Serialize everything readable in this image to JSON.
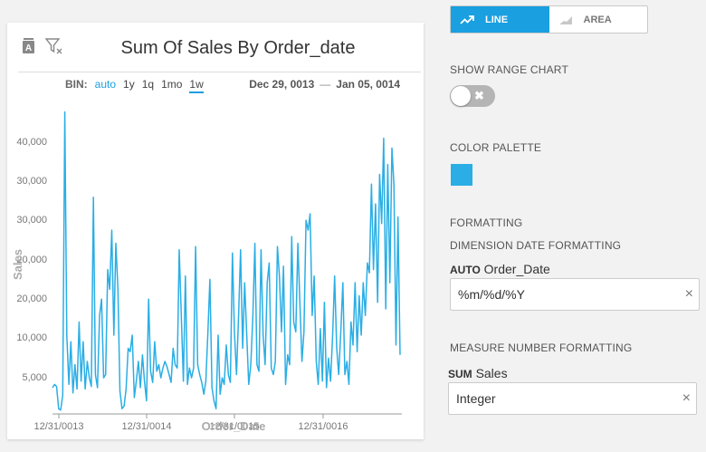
{
  "card": {
    "title": "Sum Of Sales By Order_date",
    "bin_label": "BIN:",
    "bin_options": [
      "auto",
      "1y",
      "1q",
      "1mo",
      "1w"
    ],
    "range_start": "Dec 29, 0013",
    "range_sep": "—",
    "range_end": "Jan 05, 0014",
    "icons": [
      "clear-text-icon",
      "clear-filter-icon"
    ]
  },
  "chart_data": {
    "type": "line",
    "xlabel": "Order_Date",
    "ylabel": "Sales",
    "x_ticks": [
      "12/31/0013",
      "12/31/0014",
      "12/31/0015",
      "12/31/0016"
    ],
    "y_ticks": [
      "5,000",
      "10,000",
      "20,000",
      "20,000",
      "30,000",
      "30,000",
      "40,000"
    ],
    "ylim": [
      0,
      46500
    ],
    "series_color": "#2aaee5",
    "series": [
      {
        "values": [
          4000,
          4500,
          4200,
          800,
          600,
          2800,
          46000,
          12000,
          4500,
          11000,
          3200,
          7500,
          3800,
          14000,
          5000,
          11000,
          3800,
          8000,
          5500,
          4200,
          33000,
          6000,
          4000,
          15000,
          17500,
          5500,
          6000,
          22000,
          19000,
          28000,
          12000,
          26000,
          19000,
          3500,
          800,
          1200,
          3800,
          10000,
          9500,
          12000,
          2500,
          5000,
          8000,
          4000,
          9000,
          5000,
          2000,
          17500,
          6500,
          4800,
          11000,
          6500,
          7500,
          5500,
          7000,
          8000,
          7200,
          6000,
          4800,
          10000,
          7500,
          7000,
          25000,
          15000,
          5000,
          21000,
          4500,
          7000,
          5500,
          7000,
          25500,
          7500,
          6000,
          4800,
          3000,
          5000,
          12500,
          20500,
          4000,
          2000,
          800,
          12000,
          3000,
          5500,
          4500,
          10500,
          6000,
          4800,
          24500,
          12500,
          6000,
          15000,
          25000,
          10000,
          20000,
          12000,
          4500,
          7500,
          15000,
          26000,
          7500,
          6500,
          25000,
          12000,
          7500,
          20000,
          23000,
          7000,
          6000,
          8000,
          25500,
          21000,
          12500,
          22500,
          4500,
          9000,
          7500,
          27000,
          14000,
          12500,
          26000,
          17000,
          8000,
          12500,
          29500,
          28000,
          30500,
          15000,
          21000,
          8000,
          4500,
          13000,
          5000,
          17000,
          4000,
          8500,
          5000,
          12000,
          21000,
          10000,
          6000,
          12500,
          20000,
          6000,
          8000,
          4500,
          14000,
          10500,
          20000,
          9500,
          18000,
          12000,
          20000,
          15000,
          23000,
          21500,
          35000,
          22000,
          32000,
          17000,
          36500,
          29000,
          42000,
          16000,
          38000,
          20000,
          40500,
          35000,
          10500,
          30000,
          9000
        ]
      }
    ]
  },
  "side": {
    "chart_type_line": "LINE",
    "chart_type_area": "AREA",
    "show_range_label": "SHOW RANGE CHART",
    "color_palette_label": "COLOR PALETTE",
    "swatch_color": "#2aaee5",
    "formatting_label": "FORMATTING",
    "dimension_date_label": "DIMENSION DATE FORMATTING",
    "dim_agg": "AUTO",
    "dim_field": "Order_Date",
    "dim_value": "%m/%d/%Y",
    "measure_label": "MEASURE NUMBER FORMATTING",
    "measure_agg": "SUM",
    "measure_field": "Sales",
    "measure_value": "Integer",
    "clear_glyph": "×",
    "toggle_glyph": "✖"
  }
}
